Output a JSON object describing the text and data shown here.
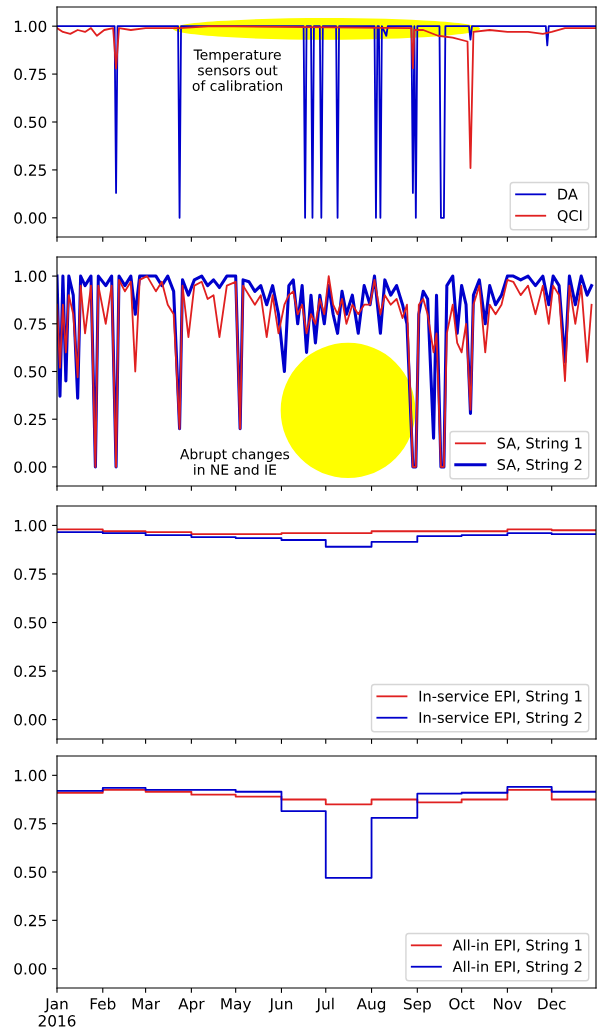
{
  "chart_data": [
    {
      "type": "line",
      "xlim": [
        "2016-01-01",
        "2016-12-31"
      ],
      "ylim": [
        -0.1,
        1.1
      ],
      "tick_labels": "y",
      "legend": "bottom right",
      "grid": false,
      "yticks": [
        {
          "value": 0,
          "label": "0.00"
        },
        {
          "value": 0.25,
          "label": "0.25"
        },
        {
          "value": 0.5,
          "label": "0.50"
        },
        {
          "value": 0.75,
          "label": "0.75"
        },
        {
          "value": 1,
          "label": "1.00"
        }
      ],
      "xticks": [
        "2016-01-01",
        "2016-02-01",
        "2016-03-01",
        "2016-04-01",
        "2016-05-01",
        "2016-06-01",
        "2016-07-01",
        "2016-08-01",
        "2016-09-01",
        "2016-10-01",
        "2016-11-01",
        "2016-12-01"
      ],
      "annotations": [
        "Temperature\nsensors out\nof calibration"
      ],
      "series": [
        {
          "name": "DA",
          "color": "#0000cc",
          "x": [
            "2016-01-01",
            "2016-02-09",
            "2016-02-10",
            "2016-02-11",
            "2016-03-23",
            "2016-03-24",
            "2016-03-25",
            "2016-03-28",
            "2016-03-29",
            "2016-06-16",
            "2016-06-17",
            "2016-06-18",
            "2016-06-21",
            "2016-06-22",
            "2016-06-23",
            "2016-06-27",
            "2016-06-28",
            "2016-06-29",
            "2016-07-08",
            "2016-07-09",
            "2016-07-10",
            "2016-08-03",
            "2016-08-04",
            "2016-08-05",
            "2016-08-06",
            "2016-08-07",
            "2016-08-08",
            "2016-08-11",
            "2016-08-12",
            "2016-08-28",
            "2016-08-29",
            "2016-08-30",
            "2016-08-31",
            "2016-09-01",
            "2016-09-16",
            "2016-09-17",
            "2016-09-19",
            "2016-09-20",
            "2016-10-06",
            "2016-10-07",
            "2016-10-08",
            "2016-11-27",
            "2016-11-28",
            "2016-11-29",
            "2016-12-31"
          ],
          "values": [
            1.0,
            1.0,
            0.13,
            1.0,
            1.0,
            0.0,
            1.0,
            1.0,
            1.0,
            1.0,
            0.0,
            1.0,
            1.0,
            0.0,
            1.0,
            1.0,
            0.0,
            1.0,
            1.0,
            0.0,
            1.0,
            1.0,
            0.0,
            1.0,
            1.0,
            0.0,
            1.0,
            0.95,
            1.0,
            1.0,
            0.13,
            1.0,
            0.0,
            1.0,
            1.0,
            0.0,
            0.0,
            1.0,
            1.0,
            0.93,
            1.0,
            1.0,
            0.9,
            1.0,
            1.0
          ]
        },
        {
          "name": "QCI",
          "color": "#e02020",
          "x": [
            "2016-01-01",
            "2016-01-05",
            "2016-01-10",
            "2016-01-15",
            "2016-01-20",
            "2016-01-24",
            "2016-01-28",
            "2016-02-02",
            "2016-02-08",
            "2016-02-10",
            "2016-02-12",
            "2016-02-20",
            "2016-03-01",
            "2016-03-24",
            "2016-04-15",
            "2016-08-28",
            "2016-08-29",
            "2016-08-30",
            "2016-09-05",
            "2016-09-15",
            "2016-09-25",
            "2016-10-05",
            "2016-10-07",
            "2016-10-09",
            "2016-10-20",
            "2016-11-01",
            "2016-11-15",
            "2016-11-25",
            "2016-12-01",
            "2016-12-10",
            "2016-12-31"
          ],
          "values": [
            0.99,
            0.97,
            0.96,
            0.98,
            0.97,
            0.99,
            0.95,
            0.98,
            0.99,
            0.78,
            0.99,
            0.98,
            0.99,
            0.99,
            1.0,
            0.99,
            0.78,
            0.98,
            0.98,
            0.95,
            0.94,
            0.92,
            0.26,
            0.97,
            0.98,
            0.97,
            0.97,
            0.96,
            0.97,
            0.99,
            0.99
          ]
        }
      ]
    },
    {
      "type": "line",
      "xlim": [
        "2016-01-01",
        "2016-12-31"
      ],
      "ylim": [
        -0.1,
        1.1
      ],
      "tick_labels": "y",
      "legend": "bottom right",
      "grid": false,
      "yticks": [
        {
          "value": 0,
          "label": "0.00"
        },
        {
          "value": 0.25,
          "label": "0.25"
        },
        {
          "value": 0.5,
          "label": "0.50"
        },
        {
          "value": 0.75,
          "label": "0.75"
        },
        {
          "value": 1,
          "label": "1.00"
        }
      ],
      "xticks": [
        "2016-01-01",
        "2016-02-01",
        "2016-03-01",
        "2016-04-01",
        "2016-05-01",
        "2016-06-01",
        "2016-07-01",
        "2016-08-01",
        "2016-09-01",
        "2016-10-01",
        "2016-11-01",
        "2016-12-01"
      ],
      "annotations": [
        "Abrupt changes\nin NE and IE"
      ],
      "x": [
        "2016-01-01",
        "2016-01-03",
        "2016-01-05",
        "2016-01-07",
        "2016-01-09",
        "2016-01-12",
        "2016-01-15",
        "2016-01-17",
        "2016-01-20",
        "2016-01-24",
        "2016-01-27",
        "2016-01-29",
        "2016-02-03",
        "2016-02-07",
        "2016-02-10",
        "2016-02-12",
        "2016-02-16",
        "2016-02-20",
        "2016-02-23",
        "2016-02-26",
        "2016-03-02",
        "2016-03-08",
        "2016-03-12",
        "2016-03-16",
        "2016-03-20",
        "2016-03-24",
        "2016-03-26",
        "2016-03-30",
        "2016-04-03",
        "2016-04-08",
        "2016-04-12",
        "2016-04-16",
        "2016-04-20",
        "2016-04-25",
        "2016-05-01",
        "2016-05-04",
        "2016-05-06",
        "2016-05-10",
        "2016-05-14",
        "2016-05-18",
        "2016-05-22",
        "2016-05-26",
        "2016-05-30",
        "2016-06-03",
        "2016-06-06",
        "2016-06-09",
        "2016-06-12",
        "2016-06-15",
        "2016-06-18",
        "2016-06-21",
        "2016-06-24",
        "2016-06-27",
        "2016-06-30",
        "2016-07-03",
        "2016-07-06",
        "2016-07-09",
        "2016-07-12",
        "2016-07-15",
        "2016-07-19",
        "2016-07-23",
        "2016-07-27",
        "2016-07-31",
        "2016-08-03",
        "2016-08-07",
        "2016-08-10",
        "2016-08-14",
        "2016-08-18",
        "2016-08-22",
        "2016-08-25",
        "2016-08-29",
        "2016-08-31",
        "2016-09-02",
        "2016-09-05",
        "2016-09-08",
        "2016-09-12",
        "2016-09-14",
        "2016-09-17",
        "2016-09-19",
        "2016-09-21",
        "2016-09-25",
        "2016-09-28",
        "2016-10-01",
        "2016-10-04",
        "2016-10-07",
        "2016-10-09",
        "2016-10-13",
        "2016-10-17",
        "2016-10-20",
        "2016-10-24",
        "2016-10-28",
        "2016-11-01",
        "2016-11-05",
        "2016-11-10",
        "2016-11-15",
        "2016-11-20",
        "2016-11-25",
        "2016-11-29",
        "2016-12-02",
        "2016-12-06",
        "2016-12-10",
        "2016-12-13",
        "2016-12-17",
        "2016-12-21",
        "2016-12-25",
        "2016-12-28"
      ],
      "series": [
        {
          "name": "SA, String 1",
          "color": "#e02020",
          "values": [
            0.85,
            0.52,
            0.85,
            0.6,
            0.9,
            0.8,
            0.47,
            0.95,
            0.7,
            0.95,
            0.0,
            0.95,
            0.75,
            0.95,
            0.0,
            0.98,
            0.92,
            0.97,
            0.5,
            0.98,
            1.0,
            0.92,
            0.97,
            0.85,
            0.8,
            0.2,
            0.95,
            0.68,
            0.95,
            0.97,
            0.88,
            0.9,
            0.68,
            0.95,
            0.97,
            0.2,
            0.95,
            0.9,
            0.85,
            0.9,
            0.68,
            0.9,
            0.7,
            0.85,
            0.9,
            0.92,
            0.8,
            0.85,
            0.7,
            0.8,
            0.75,
            0.88,
            0.8,
            1.0,
            0.85,
            0.8,
            0.88,
            0.75,
            0.85,
            0.8,
            0.85,
            0.85,
            0.98,
            0.8,
            0.9,
            0.85,
            0.88,
            0.78,
            0.85,
            0.0,
            0.0,
            0.85,
            0.88,
            0.8,
            0.6,
            0.7,
            0.0,
            0.0,
            0.7,
            0.85,
            0.65,
            0.6,
            0.75,
            0.3,
            0.85,
            0.95,
            0.6,
            0.85,
            0.8,
            0.85,
            0.98,
            0.97,
            0.9,
            0.95,
            0.8,
            0.95,
            0.75,
            0.95,
            0.9,
            0.45,
            0.95,
            0.75,
            0.95,
            0.55,
            0.85
          ]
        },
        {
          "name": "SA, String 2",
          "color": "#0000cc",
          "values": [
            1.0,
            0.37,
            1.0,
            0.45,
            1.0,
            0.9,
            0.36,
            1.0,
            0.95,
            1.0,
            0.0,
            1.0,
            0.95,
            1.0,
            0.0,
            1.0,
            0.95,
            1.0,
            0.8,
            1.0,
            1.0,
            1.0,
            0.95,
            1.0,
            0.92,
            0.2,
            0.98,
            0.9,
            0.98,
            1.0,
            0.95,
            0.98,
            0.94,
            1.0,
            1.0,
            0.2,
            0.98,
            0.97,
            0.92,
            0.95,
            0.85,
            0.95,
            0.8,
            0.5,
            0.95,
            0.98,
            0.75,
            0.95,
            0.6,
            0.9,
            0.65,
            0.9,
            0.75,
            0.95,
            0.8,
            0.7,
            0.92,
            0.8,
            0.9,
            0.7,
            0.95,
            0.85,
            1.0,
            0.7,
            0.98,
            0.9,
            0.95,
            0.85,
            0.75,
            0.0,
            0.0,
            0.8,
            0.92,
            0.88,
            0.15,
            0.9,
            0.0,
            0.0,
            0.95,
            1.0,
            0.7,
            0.95,
            0.85,
            0.28,
            0.9,
            0.98,
            0.75,
            0.95,
            0.85,
            0.9,
            1.0,
            1.0,
            0.98,
            1.0,
            0.95,
            1.0,
            0.85,
            1.0,
            0.95,
            0.55,
            1.0,
            0.85,
            1.0,
            0.9,
            0.95
          ]
        }
      ]
    },
    {
      "type": "step",
      "xlim": [
        "2016-01-01",
        "2016-12-31"
      ],
      "ylim": [
        -0.1,
        1.1
      ],
      "tick_labels": "y",
      "legend": "bottom right",
      "grid": false,
      "yticks": [
        {
          "value": 0,
          "label": "0.00"
        },
        {
          "value": 0.25,
          "label": "0.25"
        },
        {
          "value": 0.5,
          "label": "0.50"
        },
        {
          "value": 0.75,
          "label": "0.75"
        },
        {
          "value": 1,
          "label": "1.00"
        }
      ],
      "xticks": [
        "2016-01-01",
        "2016-02-01",
        "2016-03-01",
        "2016-04-01",
        "2016-05-01",
        "2016-06-01",
        "2016-07-01",
        "2016-08-01",
        "2016-09-01",
        "2016-10-01",
        "2016-11-01",
        "2016-12-01"
      ],
      "x": [
        "2016-01-01",
        "2016-02-01",
        "2016-03-01",
        "2016-04-01",
        "2016-05-01",
        "2016-06-01",
        "2016-07-01",
        "2016-08-01",
        "2016-09-01",
        "2016-10-01",
        "2016-11-01",
        "2016-12-01",
        "2016-12-31"
      ],
      "series": [
        {
          "name": "In-service EPI, String 1",
          "color": "#e02020",
          "values": [
            0.98,
            0.97,
            0.965,
            0.955,
            0.955,
            0.96,
            0.96,
            0.97,
            0.97,
            0.97,
            0.98,
            0.975,
            0.975
          ]
        },
        {
          "name": "In-service EPI, String 2",
          "color": "#0000cc",
          "values": [
            0.965,
            0.96,
            0.95,
            0.94,
            0.935,
            0.925,
            0.89,
            0.915,
            0.945,
            0.95,
            0.96,
            0.955,
            0.955
          ]
        }
      ]
    },
    {
      "type": "step",
      "xlim": [
        "2016-01-01",
        "2016-12-31"
      ],
      "ylim": [
        -0.1,
        1.1
      ],
      "legend": "bottom right",
      "grid": false,
      "yticks": [
        {
          "value": 0,
          "label": "0.00"
        },
        {
          "value": 0.25,
          "label": "0.25"
        },
        {
          "value": 0.5,
          "label": "0.50"
        },
        {
          "value": 0.75,
          "label": "0.75"
        },
        {
          "value": 1,
          "label": "1.00"
        }
      ],
      "xticks": [
        {
          "value": "2016-01-01",
          "label": "Jan\n2016"
        },
        {
          "value": "2016-02-01",
          "label": "Feb"
        },
        {
          "value": "2016-03-01",
          "label": "Mar"
        },
        {
          "value": "2016-04-01",
          "label": "Apr"
        },
        {
          "value": "2016-05-01",
          "label": "May"
        },
        {
          "value": "2016-06-01",
          "label": "Jun"
        },
        {
          "value": "2016-07-01",
          "label": "Jul"
        },
        {
          "value": "2016-08-01",
          "label": "Aug"
        },
        {
          "value": "2016-09-01",
          "label": "Sep"
        },
        {
          "value": "2016-10-01",
          "label": "Oct"
        },
        {
          "value": "2016-11-01",
          "label": "Nov"
        },
        {
          "value": "2016-12-01",
          "label": "Dec"
        }
      ],
      "x": [
        "2016-01-01",
        "2016-02-01",
        "2016-03-01",
        "2016-04-01",
        "2016-05-01",
        "2016-06-01",
        "2016-07-01",
        "2016-08-01",
        "2016-09-01",
        "2016-10-01",
        "2016-11-01",
        "2016-12-01",
        "2016-12-31"
      ],
      "series": [
        {
          "name": "All-in EPI, String 1",
          "color": "#e02020",
          "values": [
            0.91,
            0.925,
            0.915,
            0.9,
            0.89,
            0.875,
            0.85,
            0.875,
            0.86,
            0.875,
            0.925,
            0.875,
            0.875
          ]
        },
        {
          "name": "All-in EPI, String 2",
          "color": "#0000cc",
          "values": [
            0.92,
            0.935,
            0.925,
            0.925,
            0.915,
            0.815,
            0.47,
            0.78,
            0.905,
            0.91,
            0.94,
            0.915,
            0.915
          ]
        }
      ]
    }
  ]
}
